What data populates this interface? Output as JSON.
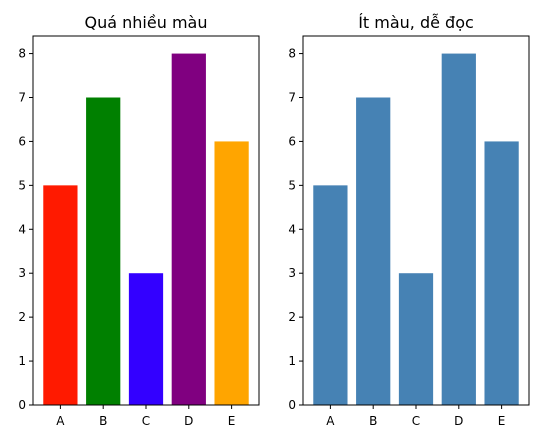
{
  "chart_data": [
    {
      "type": "bar",
      "title": "Quá nhiều màu",
      "xlabel": "",
      "ylabel": "",
      "categories": [
        "A",
        "B",
        "C",
        "D",
        "E"
      ],
      "values": [
        5,
        7,
        3,
        8,
        6
      ],
      "colors": [
        "#ff1a00",
        "#008000",
        "#3300ff",
        "#800080",
        "#ffa500"
      ],
      "ylim": [
        0,
        8.4
      ],
      "yticks": [
        0,
        1,
        2,
        3,
        4,
        5,
        6,
        7,
        8
      ],
      "grid": false,
      "legend": "none"
    },
    {
      "type": "bar",
      "title": "Ít màu, dễ đọc",
      "xlabel": "",
      "ylabel": "",
      "categories": [
        "A",
        "B",
        "C",
        "D",
        "E"
      ],
      "values": [
        5,
        7,
        3,
        8,
        6
      ],
      "colors": [
        "#4682b4",
        "#4682b4",
        "#4682b4",
        "#4682b4",
        "#4682b4"
      ],
      "ylim": [
        0,
        8.4
      ],
      "yticks": [
        0,
        1,
        2,
        3,
        4,
        5,
        6,
        7,
        8
      ],
      "grid": false,
      "legend": "none"
    }
  ]
}
